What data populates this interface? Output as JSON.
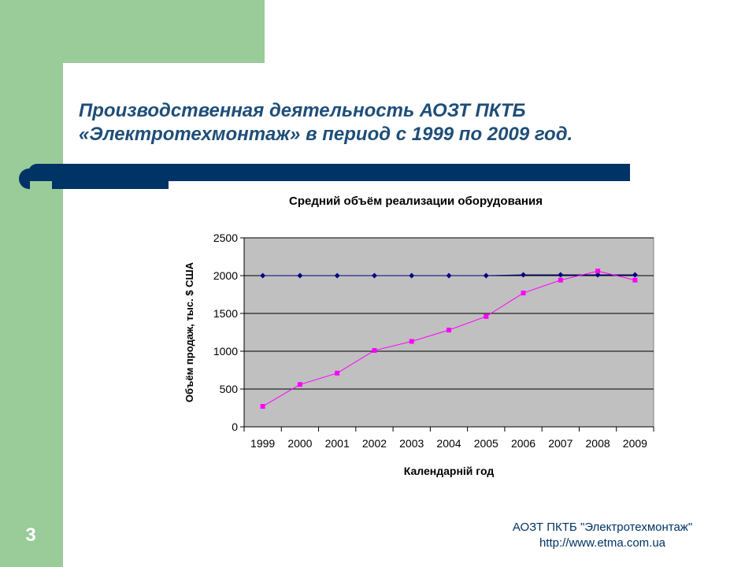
{
  "slide": {
    "title_line1": "Производственная деятельность АОЗТ ПКТБ",
    "title_line2": "«Электротехмонтаж» в период с 1999 по 2009 год.",
    "number": "3",
    "footer_line1": "АОЗТ ПКТБ \"Электротехмонтаж\"",
    "footer_line2": "http://www.etma.com.ua",
    "colors": {
      "accent": "#99cc99",
      "navy": "#003366",
      "title": "#1f4e79",
      "plot_bg": "#c0c0c0"
    }
  },
  "chart_data": {
    "type": "line",
    "title": "Средний объём реализации оборудования",
    "xlabel": "Календарній год",
    "ylabel": "Объём продаж, тыс. $ США",
    "categories": [
      "1999",
      "2000",
      "2001",
      "2002",
      "2003",
      "2004",
      "2005",
      "2006",
      "2007",
      "2008",
      "2009"
    ],
    "ylim": [
      0,
      2500
    ],
    "yticks": [
      0,
      500,
      1000,
      1500,
      2000,
      2500
    ],
    "grid": true,
    "legend": "none",
    "series": [
      {
        "color": "#000080",
        "marker": "diamond",
        "values": [
          2000,
          2000,
          2000,
          2000,
          2000,
          2000,
          2000,
          2010,
          2010,
          2010,
          2010
        ]
      },
      {
        "color": "#ff00ff",
        "marker": "square",
        "values": [
          270,
          560,
          710,
          1010,
          1130,
          1280,
          1460,
          1770,
          1940,
          2060,
          1940
        ]
      }
    ]
  }
}
